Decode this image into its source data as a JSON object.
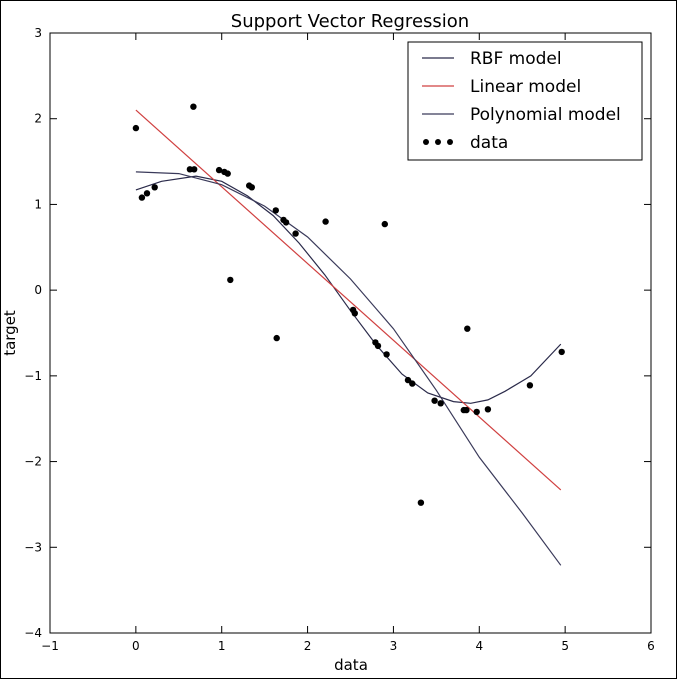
{
  "chart_data": {
    "type": "line",
    "title": "Support Vector Regression",
    "xlabel": "data",
    "ylabel": "target",
    "xlim": [
      -1,
      6
    ],
    "ylim": [
      -4,
      3
    ],
    "xticks": [
      -1,
      0,
      1,
      2,
      3,
      4,
      5,
      6
    ],
    "yticks": [
      -4,
      -3,
      -2,
      -1,
      0,
      1,
      2,
      3
    ],
    "grid": false,
    "legend_position": "top-right",
    "series": [
      {
        "name": "RBF model",
        "color": "#2a2a4a",
        "style": "line",
        "x": [
          0.0,
          0.3,
          0.7,
          1.0,
          1.3,
          1.6,
          1.9,
          2.2,
          2.5,
          2.8,
          3.1,
          3.4,
          3.7,
          3.9,
          4.1,
          4.3,
          4.6,
          4.95
        ],
        "y": [
          1.17,
          1.27,
          1.33,
          1.27,
          1.1,
          0.87,
          0.55,
          0.18,
          -0.24,
          -0.64,
          -0.98,
          -1.2,
          -1.3,
          -1.32,
          -1.28,
          -1.18,
          -1.0,
          -0.63
        ]
      },
      {
        "name": "Linear model",
        "color": "#d04040",
        "style": "line",
        "x": [
          0.0,
          4.95
        ],
        "y": [
          2.1,
          -2.33
        ]
      },
      {
        "name": "Polynomial model",
        "color": "#3a3a5a",
        "style": "line",
        "x": [
          0.0,
          0.5,
          1.0,
          1.5,
          2.0,
          2.5,
          3.0,
          3.5,
          4.0,
          4.5,
          4.95
        ],
        "y": [
          1.38,
          1.36,
          1.23,
          0.98,
          0.62,
          0.13,
          -0.45,
          -1.17,
          -1.95,
          -2.6,
          -3.21
        ]
      },
      {
        "name": "data",
        "color": "#000000",
        "style": "scatter",
        "x": [
          0.0,
          0.07,
          0.13,
          0.22,
          0.63,
          0.67,
          0.68,
          0.97,
          1.03,
          1.07,
          1.1,
          1.32,
          1.35,
          1.63,
          1.64,
          1.72,
          1.75,
          1.86,
          2.21,
          2.53,
          2.55,
          2.79,
          2.82,
          2.9,
          2.92,
          3.17,
          3.22,
          3.32,
          3.48,
          3.55,
          3.82,
          3.85,
          3.86,
          3.97,
          4.1,
          4.59,
          4.96
        ],
        "y": [
          1.89,
          1.08,
          1.13,
          1.2,
          1.41,
          2.14,
          1.41,
          1.4,
          1.38,
          1.36,
          0.12,
          1.22,
          1.2,
          0.93,
          -0.56,
          0.82,
          0.79,
          0.66,
          0.8,
          -0.23,
          -0.27,
          -0.61,
          -0.65,
          0.77,
          -0.75,
          -1.05,
          -1.09,
          -2.48,
          -1.29,
          -1.32,
          -1.4,
          -1.4,
          -0.45,
          -1.42,
          -1.39,
          -1.11,
          -0.72
        ]
      }
    ]
  }
}
